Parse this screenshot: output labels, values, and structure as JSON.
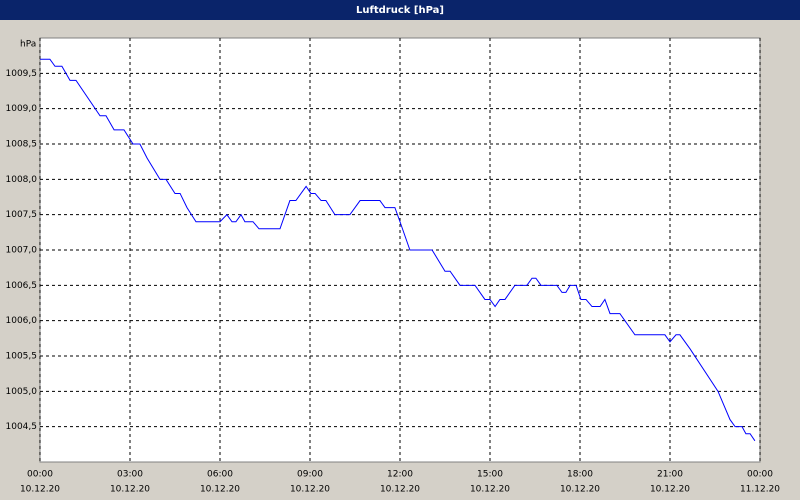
{
  "chart_data": {
    "type": "line",
    "title": "Luftdruck [hPa]",
    "y_label": "hPa",
    "x": [
      0,
      0.33,
      0.5,
      0.73,
      1.0,
      1.2,
      2.0,
      2.2,
      2.47,
      2.8,
      3.1,
      3.33,
      3.57,
      4.0,
      4.2,
      4.5,
      4.67,
      4.9,
      5.2,
      6.0,
      6.23,
      6.4,
      6.53,
      6.7,
      6.83,
      7.1,
      7.3,
      8.0,
      8.33,
      8.53,
      8.87,
      9.03,
      9.17,
      9.37,
      9.53,
      9.83,
      10.33,
      10.67,
      11.33,
      11.5,
      11.83,
      12.0,
      12.33,
      13.07,
      13.5,
      13.67,
      14.0,
      14.5,
      14.83,
      15.0,
      15.17,
      15.33,
      15.5,
      15.83,
      16.23,
      16.4,
      16.53,
      16.7,
      17.23,
      17.4,
      17.53,
      17.67,
      17.87,
      18.03,
      18.2,
      18.4,
      18.67,
      18.83,
      19.0,
      19.33,
      19.83,
      20.83,
      21.0,
      21.2,
      21.33,
      21.67,
      22.6,
      23.0,
      23.17,
      23.4,
      23.53,
      23.67,
      23.83
    ],
    "series": [
      {
        "name": "Luftdruck",
        "color": "#0000ff",
        "values": [
          1009.7,
          1009.7,
          1009.6,
          1009.6,
          1009.4,
          1009.4,
          1008.9,
          1008.9,
          1008.7,
          1008.7,
          1008.5,
          1008.5,
          1008.3,
          1008.0,
          1008.0,
          1007.8,
          1007.8,
          1007.6,
          1007.4,
          1007.4,
          1007.5,
          1007.4,
          1007.4,
          1007.5,
          1007.4,
          1007.4,
          1007.3,
          1007.3,
          1007.7,
          1007.7,
          1007.9,
          1007.8,
          1007.8,
          1007.7,
          1007.7,
          1007.5,
          1007.5,
          1007.7,
          1007.7,
          1007.6,
          1007.6,
          1007.4,
          1007.0,
          1007.0,
          1006.7,
          1006.7,
          1006.5,
          1006.5,
          1006.3,
          1006.3,
          1006.2,
          1006.3,
          1006.3,
          1006.5,
          1006.5,
          1006.6,
          1006.6,
          1006.5,
          1006.5,
          1006.4,
          1006.4,
          1006.5,
          1006.5,
          1006.3,
          1006.3,
          1006.2,
          1006.2,
          1006.3,
          1006.1,
          1006.1,
          1005.8,
          1005.8,
          1005.7,
          1005.8,
          1005.8,
          1005.6,
          1005.0,
          1004.6,
          1004.5,
          1004.5,
          1004.4,
          1004.4,
          1004.3
        ]
      }
    ],
    "xlim": [
      0,
      24
    ],
    "ylim": [
      1004,
      1010
    ],
    "xticks": [
      {
        "value": 0,
        "label": "00:00",
        "date": "10.12.20"
      },
      {
        "value": 3,
        "label": "03:00",
        "date": "10.12.20"
      },
      {
        "value": 6,
        "label": "06:00",
        "date": "10.12.20"
      },
      {
        "value": 9,
        "label": "09:00",
        "date": "10.12.20"
      },
      {
        "value": 12,
        "label": "12:00",
        "date": "10.12.20"
      },
      {
        "value": 15,
        "label": "15:00",
        "date": "10.12.20"
      },
      {
        "value": 18,
        "label": "18:00",
        "date": "10.12.20"
      },
      {
        "value": 21,
        "label": "21:00",
        "date": "10.12.20"
      },
      {
        "value": 24,
        "label": "00:00",
        "date": "11.12.20"
      }
    ],
    "yticks": [
      {
        "value": 1004.5,
        "label": "1004,5"
      },
      {
        "value": 1005,
        "label": "1005,0"
      },
      {
        "value": 1005.5,
        "label": "1005,5"
      },
      {
        "value": 1006,
        "label": "1006,0"
      },
      {
        "value": 1006.5,
        "label": "1006,5"
      },
      {
        "value": 1007,
        "label": "1007,0"
      },
      {
        "value": 1007.5,
        "label": "1007,5"
      },
      {
        "value": 1008,
        "label": "1008,0"
      },
      {
        "value": 1008.5,
        "label": "1008,5"
      },
      {
        "value": 1009,
        "label": "1009,0"
      },
      {
        "value": 1009.5,
        "label": "1009,5"
      }
    ],
    "grid": true
  }
}
